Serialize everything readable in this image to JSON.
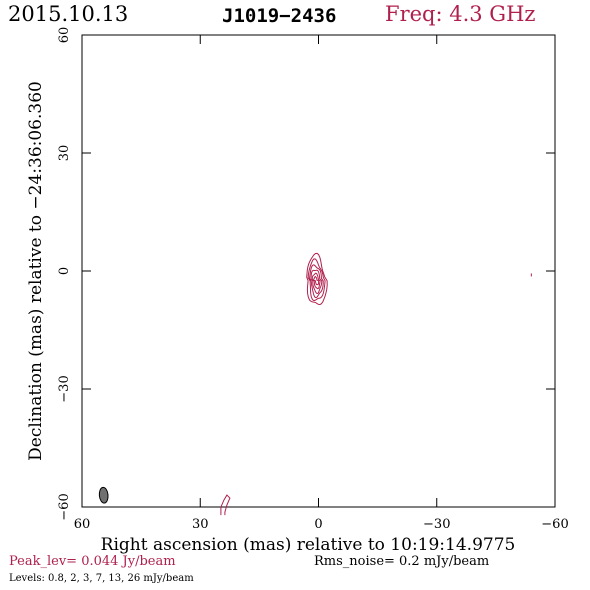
{
  "header": {
    "date": "2015.10.13",
    "source": "J1019−2436",
    "frequency": "Freq: 4.3 GHz"
  },
  "footer": {
    "peak": "Peak_lev=  0.044 Jy/beam",
    "rms": "Rms_noise=   0.2 mJy/beam",
    "levels": "Levels: 0.8,    2,    3,    7,   13,   26 mJy/beam"
  },
  "colors": {
    "contour": "#b0204d",
    "beam": "#707070"
  },
  "chart_data": {
    "type": "contour",
    "xlabel": "Right ascension (mas) relative to 10:19:14.9775",
    "ylabel": "Declination (mas) relative to −24:36:06.360",
    "xlim": [
      60,
      -60
    ],
    "ylim": [
      -60,
      60
    ],
    "x_ticks": [
      60,
      30,
      0,
      -30,
      -60
    ],
    "y_ticks": [
      60,
      30,
      0,
      -30,
      -60
    ],
    "x_tick_labels": [
      "60",
      "30",
      "0",
      "−30",
      "−60"
    ],
    "y_tick_labels": [
      "60",
      "30",
      "0",
      "−30",
      "−60"
    ],
    "contour_levels_mJy": [
      0.8,
      2,
      3,
      7,
      13,
      26
    ],
    "peak_Jy_per_beam": 0.044,
    "rms_mJy_per_beam": 0.2,
    "components": [
      {
        "x": 0.5,
        "y": -2.5,
        "note": "core"
      },
      {
        "x": 24,
        "y": -59,
        "note": "lowest-level feature"
      },
      {
        "x": -54,
        "y": -1,
        "note": "lowest-level feature"
      }
    ],
    "beam": {
      "x": 54.5,
      "y": -57,
      "major_mas": 4.0,
      "minor_mas": 2.2,
      "pa_deg": -5
    }
  }
}
